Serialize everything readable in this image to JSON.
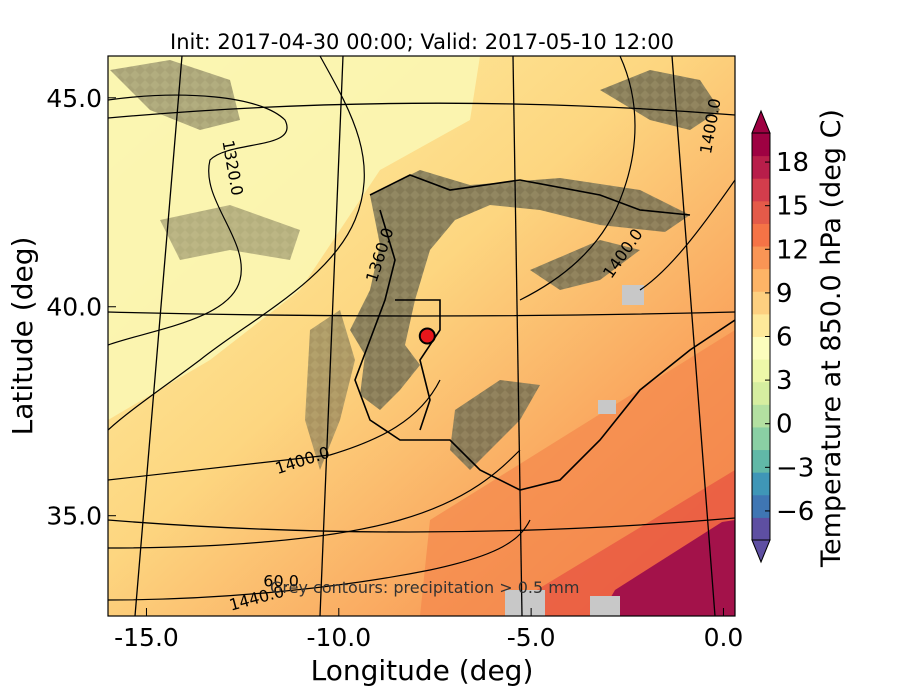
{
  "figure": {
    "title": "Init: 2017-04-30 00:00; Valid: 2017-05-10 12:00",
    "xlabel": "Longitude (deg)",
    "ylabel": "Latitude (deg)",
    "note": "Grey contours: precipitation > 0.5 mm",
    "marker_label": "",
    "marker": {
      "lon": -7.7,
      "lat": 39.3,
      "color": "#e8161b"
    }
  },
  "chart_data": {
    "type": "heatmap",
    "xlim": [
      -16.0,
      0.3
    ],
    "ylim": [
      32.6,
      46.0
    ],
    "x_ticks": [
      "-15.0",
      "-10.0",
      "-5.0",
      "0.0"
    ],
    "x_tick_values": [
      -15.0,
      -10.0,
      -5.0,
      0.0
    ],
    "y_ticks": [
      "35.0",
      "40.0",
      "45.0"
    ],
    "y_tick_values": [
      35.0,
      40.0,
      45.0
    ],
    "contour_labels": [
      {
        "text": "1320.0",
        "lon": -12.9,
        "lat": 43.3,
        "angle": 80
      },
      {
        "text": "1360.0",
        "lon": -8.8,
        "lat": 41.2,
        "angle": -72
      },
      {
        "text": "1400.0",
        "lon": -10.9,
        "lat": 36.2,
        "angle": -18
      },
      {
        "text": "1400.0",
        "lon": -2.5,
        "lat": 41.2,
        "angle": -55
      },
      {
        "text": "1400.0",
        "lon": -0.2,
        "lat": 44.3,
        "angle": -80
      },
      {
        "text": "1440.0",
        "lon": -12.1,
        "lat": 32.9,
        "angle": -15
      },
      {
        "text": "60.0",
        "lon": -11.5,
        "lat": 33.3,
        "angle": 0
      }
    ],
    "colorbar": {
      "label": "Temperature at 850.0 hPa (deg C)",
      "ticks": [
        "−6",
        "−3",
        "0",
        "3",
        "6",
        "9",
        "12",
        "15",
        "18"
      ],
      "tick_values": [
        -6,
        -3,
        0,
        3,
        6,
        9,
        12,
        15,
        18
      ],
      "min": -8,
      "max": 20,
      "extend": "both",
      "colors": [
        "#5e4fa2",
        "#3f76b3",
        "#3f96b7",
        "#61b8a7",
        "#8ad0a4",
        "#b3e0a1",
        "#d6eea0",
        "#eef8a9",
        "#fcfdbd",
        "#fee99a",
        "#fdd080",
        "#fdb466",
        "#f99555",
        "#f57346",
        "#e45a49",
        "#d33d4c",
        "#b81e4a",
        "#9e0142"
      ],
      "extend_low_color": "#5e4fa2",
      "extend_high_color": "#9e0142"
    }
  }
}
